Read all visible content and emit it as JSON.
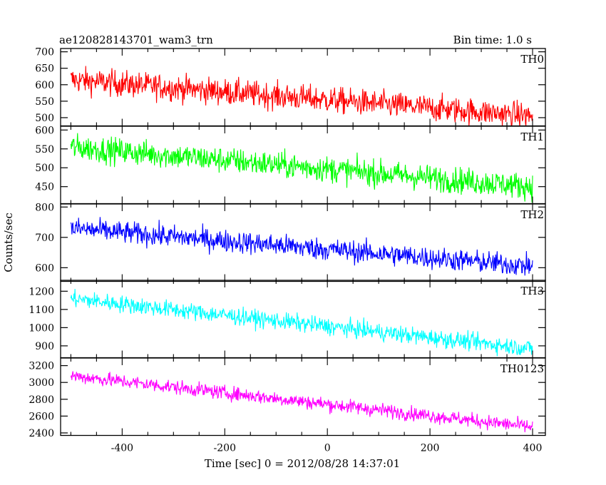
{
  "chart_data": {
    "type": "line",
    "title_left": "ae120828143701_wam3_trn",
    "title_right": "Bin time: 1.0 s",
    "ylabel": "Counts/sec",
    "xlabel": "Time [sec] 0 = 2012/08/28 14:37:01",
    "xlim": [
      -520,
      425
    ],
    "x_ticks": [
      -400,
      -200,
      0,
      200,
      400
    ],
    "x_start": -500,
    "x_end": 400,
    "panels": [
      {
        "name": "TH0",
        "color": "#ff0000",
        "ylim": [
          475,
          710
        ],
        "y_ticks": [
          500,
          550,
          600,
          650,
          700
        ],
        "start": 615,
        "end": 505,
        "noise": 38
      },
      {
        "name": "TH1",
        "color": "#00ff00",
        "ylim": [
          405,
          610
        ],
        "y_ticks": [
          450,
          500,
          550,
          600
        ],
        "start": 555,
        "end": 450,
        "noise": 33
      },
      {
        "name": "TH2",
        "color": "#0000ff",
        "ylim": [
          555,
          810
        ],
        "y_ticks": [
          600,
          700,
          800
        ],
        "start": 730,
        "end": 605,
        "noise": 35
      },
      {
        "name": "TH3",
        "color": "#00ffff",
        "ylim": [
          835,
          1260
        ],
        "y_ticks": [
          900,
          1000,
          1100,
          1200
        ],
        "start": 1160,
        "end": 885,
        "noise": 45
      },
      {
        "name": "TH0123",
        "color": "#ff00ff",
        "ylim": [
          2370,
          3290
        ],
        "y_ticks": [
          2400,
          2600,
          2800,
          3000,
          3200
        ],
        "start": 3080,
        "end": 2470,
        "noise": 80
      }
    ]
  }
}
